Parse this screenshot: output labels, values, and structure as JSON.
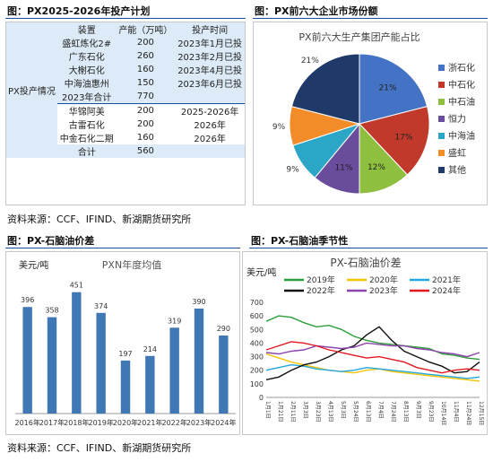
{
  "figures": {
    "top_left_title": "图：PX2025-2026年投产计划",
    "top_right_title": "图：PX前六大企业市场份额",
    "bottom_left_title": "图：PX-石脑油价差",
    "bottom_right_title": "图：PX-石脑油季节性",
    "source_top": "资料来源：CCF、IFIND、新湖期货研究所",
    "source_bottom": "资料来源：CCF、IFIND、新湖期货研究所"
  },
  "capacity_table": {
    "group_label": "PX投产情况",
    "headers": [
      "装置",
      "产能（万吨）",
      "投产时间"
    ],
    "rows_2023": [
      {
        "name": "盛虹炼化2#",
        "capacity": "200",
        "time": "2023年1月已投"
      },
      {
        "name": "广东石化",
        "capacity": "260",
        "time": "2023年2月已投"
      },
      {
        "name": "大榭石化",
        "capacity": "160",
        "time": "2023年4月已投"
      },
      {
        "name": "中海油惠州",
        "capacity": "150",
        "time": "2023年6月已投"
      }
    ],
    "subtotal_2023": {
      "name": "2023年合计",
      "capacity": "770",
      "time": ""
    },
    "rows_future": [
      {
        "name": "华锦阿美",
        "capacity": "200",
        "time": "2025-2026年"
      },
      {
        "name": "古雷石化",
        "capacity": "200",
        "time": "2026年"
      },
      {
        "name": "中金石化二期",
        "capacity": "160",
        "time": "2026年"
      }
    ],
    "total": {
      "name": "合计",
      "capacity": "560",
      "time": ""
    }
  },
  "chart_data": [
    {
      "type": "pie",
      "title": "PX前六大生产集团产能占比",
      "slices": [
        {
          "name": "浙石化",
          "value": 21,
          "label": "21%",
          "color": "#4472c4"
        },
        {
          "name": "中石化",
          "value": 17,
          "label": "17%",
          "color": "#c0392b"
        },
        {
          "name": "中石油",
          "value": 12,
          "label": "12%",
          "color": "#8fbf3f"
        },
        {
          "name": "恒力",
          "value": 11,
          "label": "11%",
          "color": "#6a4c9c"
        },
        {
          "name": "中海油",
          "value": 9,
          "label": "9%",
          "color": "#2ba6c7"
        },
        {
          "name": "盛虹",
          "value": 9,
          "label": "9%",
          "color": "#f28c28"
        },
        {
          "name": "其他",
          "value": 21,
          "label": "21%",
          "color": "#1f3a68"
        }
      ],
      "legend_position": "right"
    },
    {
      "type": "bar",
      "title": "PXN年度均值",
      "ylabel": "美元/吨",
      "categories": [
        "2016年",
        "2017年",
        "2018年",
        "2019年",
        "2020年",
        "2021年",
        "2022年",
        "2023年",
        "2024年"
      ],
      "values": [
        396,
        358,
        451,
        374,
        197,
        214,
        319,
        390,
        290
      ],
      "ylim": [
        0,
        500
      ],
      "color": "#3f78b5",
      "grid": false
    },
    {
      "type": "line",
      "title": "PX-石脑油价差",
      "ylabel": "美元/吨",
      "x_ticks": [
        "1月1日",
        "1月21日",
        "2月11日",
        "3月3日",
        "3月23日",
        "4月13日",
        "5月3日",
        "5月24日",
        "6月13日",
        "7月4日",
        "7月24日",
        "8月13日",
        "9月3日",
        "9月23日",
        "10月14日",
        "11月4日",
        "11月24日",
        "12月15日"
      ],
      "y_ticks": [
        0,
        100,
        200,
        300,
        400,
        500,
        600,
        700
      ],
      "ylim": [
        0,
        700
      ],
      "series": [
        {
          "name": "2019年",
          "color": "#2e9e3a",
          "values": [
            560,
            600,
            590,
            550,
            520,
            530,
            500,
            450,
            420,
            400,
            390,
            380,
            370,
            360,
            320,
            310,
            290,
            280
          ]
        },
        {
          "name": "2020年",
          "color": "#f5c400",
          "values": [
            320,
            290,
            260,
            240,
            220,
            200,
            190,
            180,
            200,
            210,
            190,
            180,
            170,
            160,
            150,
            140,
            130,
            120
          ]
        },
        {
          "name": "2021年",
          "color": "#22a7e0",
          "values": [
            200,
            220,
            240,
            230,
            210,
            200,
            190,
            200,
            220,
            210,
            200,
            190,
            180,
            170,
            160,
            150,
            140,
            150
          ]
        },
        {
          "name": "2022年",
          "color": "#111111",
          "values": [
            130,
            150,
            200,
            240,
            260,
            300,
            350,
            380,
            460,
            520,
            420,
            340,
            300,
            260,
            230,
            180,
            190,
            260
          ]
        },
        {
          "name": "2023年",
          "color": "#8e44ad",
          "values": [
            330,
            320,
            340,
            350,
            380,
            370,
            360,
            370,
            400,
            390,
            380,
            380,
            360,
            350,
            330,
            320,
            300,
            330
          ]
        },
        {
          "name": "2024年",
          "color": "#e0191f",
          "values": [
            350,
            380,
            410,
            400,
            380,
            350,
            330,
            310,
            290,
            300,
            280,
            260,
            220,
            200,
            180,
            200,
            210,
            200
          ]
        }
      ],
      "legend_position": "top",
      "grid": false
    }
  ]
}
